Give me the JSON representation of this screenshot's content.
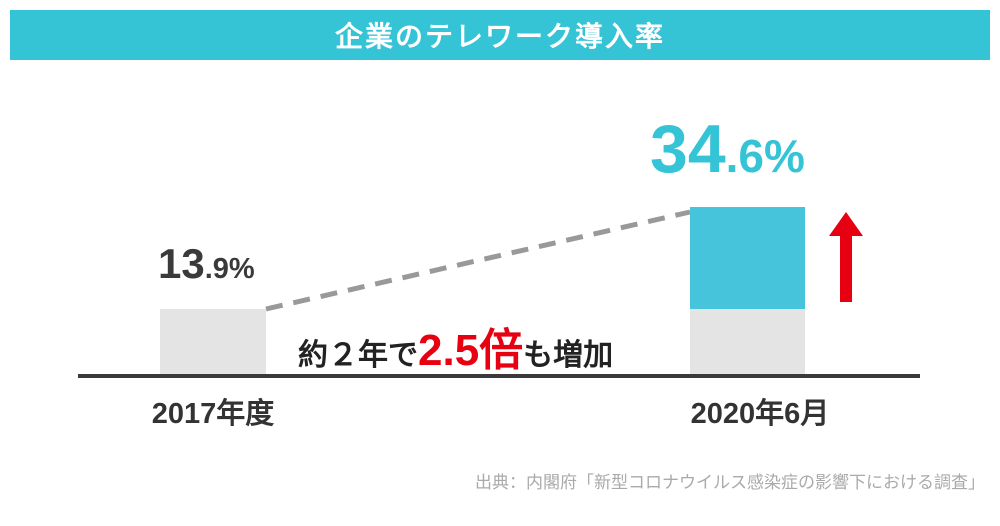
{
  "header": {
    "title": "企業のテレワーク導入率"
  },
  "chart_data": {
    "type": "bar",
    "title": "企業のテレワーク導入率",
    "categories": [
      "2017年度",
      "2020年6月"
    ],
    "values": [
      13.9,
      34.6
    ],
    "unit": "%",
    "ylim": [
      0,
      40
    ],
    "grid": false,
    "legend": "none",
    "annotations": [
      "約2年で2.5倍も増加"
    ],
    "source": "出典：内閣府「新型コロナウイルス感染症の影響下における調査」"
  },
  "bars": [
    {
      "category": "2017年度",
      "label_big": "13",
      "label_small": ".9%"
    },
    {
      "category": "2020年6月",
      "label_big": "34",
      "label_small": ".6%"
    }
  ],
  "annotation": {
    "prefix": "約２年で",
    "highlight": "2.5倍",
    "suffix": "も増加"
  },
  "source": "出典：内閣府「新型コロナウイルス感染症の影響下における調査」",
  "colors": {
    "accent_cyan": "#35C3D6",
    "bar_cyan": "#45C4DC",
    "bar_gray": "#E4E4E4",
    "arrow_red": "#E60012",
    "dash_gray": "#999999",
    "text_dark": "#333333",
    "source_gray": "#AAAAAA"
  }
}
